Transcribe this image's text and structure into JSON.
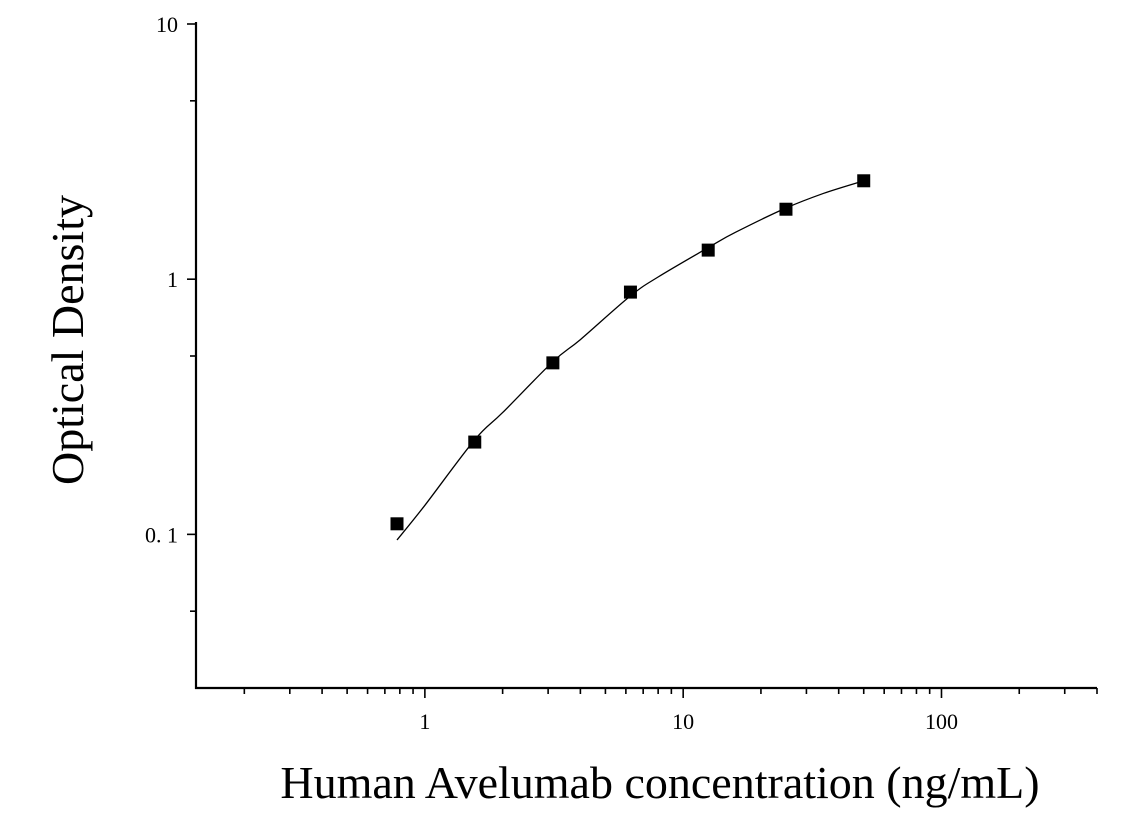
{
  "chart_data": {
    "type": "scatter",
    "title": "",
    "xlabel": "Human Avelumab concentration (ng/mL)",
    "ylabel": "Optical Density",
    "x_scale": "log",
    "y_scale": "log",
    "xlim": [
      0.13,
      400
    ],
    "ylim": [
      0.025,
      10
    ],
    "x_ticks": [
      1,
      10,
      100
    ],
    "x_tick_labels": [
      "1",
      "10",
      "100"
    ],
    "y_ticks": [
      0.1,
      1,
      10
    ],
    "y_tick_labels": [
      "0. 1",
      "1",
      "10"
    ],
    "grid": false,
    "legend": "none",
    "series": [
      {
        "x": [
          0.78,
          1.56,
          3.13,
          6.25,
          12.5,
          25,
          50
        ],
        "y": [
          0.11,
          0.23,
          0.47,
          0.89,
          1.3,
          1.88,
          2.43
        ]
      }
    ],
    "fit_curve": {
      "x": [
        0.78,
        1.0,
        1.56,
        2.0,
        3.13,
        4.0,
        6.25,
        8.0,
        12.5,
        16.0,
        25,
        35,
        50
      ],
      "y": [
        0.095,
        0.13,
        0.235,
        0.3,
        0.475,
        0.58,
        0.86,
        1.02,
        1.33,
        1.53,
        1.9,
        2.17,
        2.43
      ]
    },
    "colors": {
      "marker": "#000000",
      "curve": "#000000",
      "axis": "#000000"
    }
  }
}
